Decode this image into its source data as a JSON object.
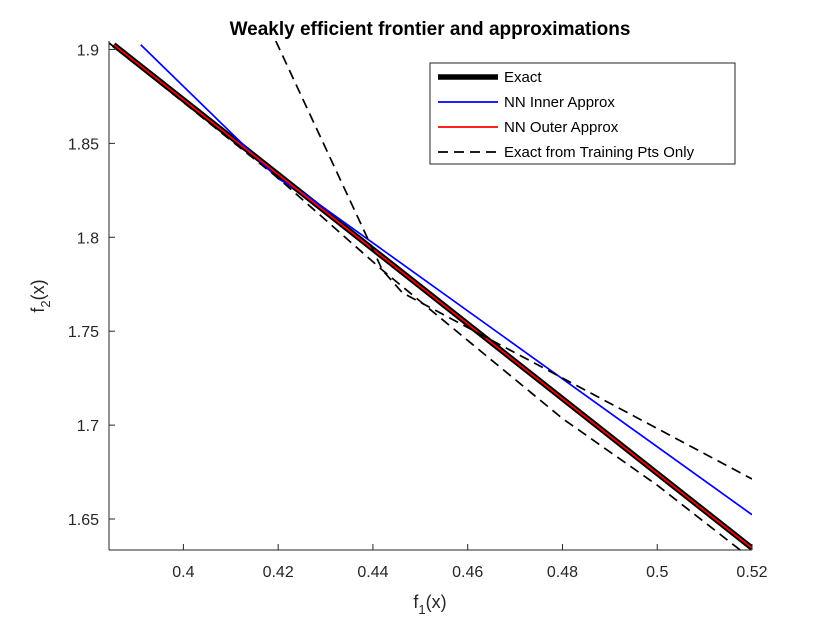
{
  "chart_data": {
    "type": "line",
    "title": "Weakly efficient frontier and approximations",
    "xlabel": {
      "base": "f",
      "sub": "1",
      "tail": "(x)"
    },
    "ylabel": {
      "base": "f",
      "sub": "2",
      "tail": "(x)"
    },
    "xlim": [
      0.3843,
      0.52
    ],
    "ylim": [
      1.6335,
      1.9045
    ],
    "xticks": [
      0.4,
      0.42,
      0.44,
      0.46,
      0.48,
      0.5,
      0.52
    ],
    "xtick_labels": [
      "0.4",
      "0.42",
      "0.44",
      "0.46",
      "0.48",
      "0.5",
      "0.52"
    ],
    "yticks": [
      1.65,
      1.7,
      1.75,
      1.8,
      1.85,
      1.9
    ],
    "ytick_labels": [
      "1.65",
      "1.7",
      "1.75",
      "1.8",
      "1.85",
      "1.9"
    ],
    "legend_position": "top-right",
    "series": [
      {
        "name": "Exact",
        "color": "#000000",
        "style": "solid",
        "weight": "thick",
        "x": [
          0.3853,
          0.52
        ],
        "y": [
          1.9025,
          1.6345
        ]
      },
      {
        "name": "NN Inner Approx",
        "color": "#0000ff",
        "style": "solid",
        "weight": "normal",
        "x": [
          0.391,
          0.42,
          0.4255,
          0.52
        ],
        "y": [
          1.9025,
          1.8312,
          1.8232,
          1.6523
        ]
      },
      {
        "name": "NN Outer Approx",
        "color": "#ff0000",
        "style": "solid",
        "weight": "normal",
        "x": [
          0.3853,
          0.52
        ],
        "y": [
          1.9025,
          1.6345
        ]
      },
      {
        "name": "Exact from Training Pts Only",
        "color": "#000000",
        "style": "dashed",
        "weight": "normal",
        "x": [
          0.4195,
          0.442,
          0.4462,
          0.52
        ],
        "y": [
          1.9045,
          1.7825,
          1.7705,
          1.6713
        ]
      },
      {
        "name": "Exact from Training Pts Only",
        "color": "#000000",
        "style": "dashed",
        "weight": "normal",
        "x": [
          0.3843,
          0.42,
          0.442,
          0.48,
          0.5,
          0.5175
        ],
        "y": [
          1.9035,
          1.8315,
          1.7825,
          1.7035,
          1.668,
          1.6335
        ]
      }
    ],
    "legend": [
      {
        "label": "Exact",
        "color": "#000000",
        "style": "solid",
        "weight": "thick"
      },
      {
        "label": "NN Inner Approx",
        "color": "#0000ff",
        "style": "solid",
        "weight": "normal"
      },
      {
        "label": "NN Outer Approx",
        "color": "#ff0000",
        "style": "solid",
        "weight": "normal"
      },
      {
        "label": "Exact from Training Pts Only",
        "color": "#000000",
        "style": "dashed",
        "weight": "normal"
      }
    ]
  }
}
